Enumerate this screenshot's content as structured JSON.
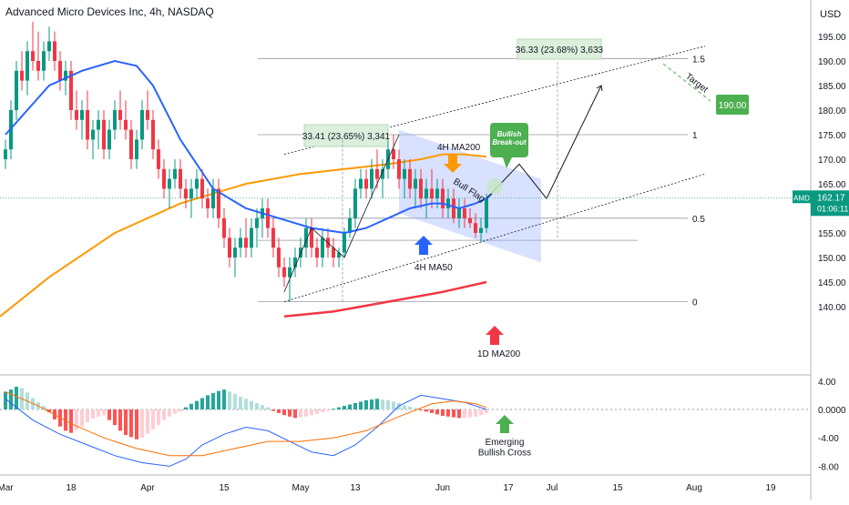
{
  "header": {
    "title": "Advanced Micro Devices Inc, 4h, NASDAQ",
    "currency": "USD"
  },
  "price_axis": {
    "ticks": [
      {
        "value": 195,
        "label": "195.00"
      },
      {
        "value": 190,
        "label": "190.00"
      },
      {
        "value": 185,
        "label": "185.00"
      },
      {
        "value": 180,
        "label": "180.00"
      },
      {
        "value": 175,
        "label": "175.00"
      },
      {
        "value": 170,
        "label": "170.00"
      },
      {
        "value": 165,
        "label": "165.00"
      },
      {
        "value": 160,
        "label": "160.00"
      },
      {
        "value": 155,
        "label": "155.00"
      },
      {
        "value": 150,
        "label": "150.00"
      },
      {
        "value": 145,
        "label": "145.00"
      },
      {
        "value": 140,
        "label": "140.00"
      }
    ],
    "last_price": {
      "symbol": "AMD",
      "price": "162.17",
      "countdown": "01:06:11",
      "value": 162.17,
      "color": "#089981"
    }
  },
  "macd_axis": {
    "ticks": [
      {
        "value": 4,
        "label": "4.00"
      },
      {
        "value": 0,
        "label": "0.0000"
      },
      {
        "value": -4,
        "label": "-4.00"
      },
      {
        "value": -8,
        "label": "-8.00"
      }
    ]
  },
  "time_axis": {
    "ticks": [
      {
        "i": 0,
        "label": "Mar"
      },
      {
        "i": 12,
        "label": "18"
      },
      {
        "i": 26,
        "label": "Apr"
      },
      {
        "i": 40,
        "label": "15"
      },
      {
        "i": 54,
        "label": "May"
      },
      {
        "i": 64,
        "label": "13"
      },
      {
        "i": 80,
        "label": "Jun"
      },
      {
        "i": 92,
        "label": "17"
      },
      {
        "i": 100,
        "label": "Jul"
      },
      {
        "i": 112,
        "label": "15"
      },
      {
        "i": 126,
        "label": "Aug"
      },
      {
        "i": 140,
        "label": "19"
      }
    ]
  },
  "annotations": {
    "target_label": "Target",
    "target_value": "190.00",
    "breakout_label": "Bullish\nBreak-out",
    "bull_flag": "Bull Flag",
    "ma200_4h": "4H MA200",
    "ma50_4h": "4H MA50",
    "ma200_1d": "1D MA200",
    "macd_cross": "Emerging\nBullish Cross",
    "measure_1": "33.41 (23.65%) 3,341",
    "measure_2": "36.33 (23.68%) 3,633",
    "fib_1_5": "1.5",
    "fib_1": "1",
    "fib_0_5": "0.5",
    "fib_0": "0"
  },
  "chart_data": {
    "type": "candlestick",
    "colors": {
      "up": "#089981",
      "down": "#f23645",
      "ma50": "#2962ff",
      "ma200_4h": "#ff9800",
      "ma200_1d": "#f23645",
      "macd": "#2962ff",
      "signal": "#ff6d00"
    },
    "ohlc": [
      [
        170,
        174,
        168,
        172
      ],
      [
        172,
        182,
        170,
        180
      ],
      [
        180,
        190,
        178,
        188
      ],
      [
        188,
        192,
        184,
        186
      ],
      [
        186,
        194,
        183,
        192
      ],
      [
        192,
        198,
        188,
        190
      ],
      [
        190,
        196,
        186,
        188
      ],
      [
        188,
        194,
        186,
        192
      ],
      [
        192,
        197,
        190,
        194
      ],
      [
        194,
        196,
        188,
        190
      ],
      [
        190,
        192,
        184,
        186
      ],
      [
        186,
        190,
        183,
        188
      ],
      [
        188,
        190,
        178,
        180
      ],
      [
        180,
        184,
        176,
        178
      ],
      [
        178,
        182,
        174,
        180
      ],
      [
        180,
        184,
        172,
        174
      ],
      [
        174,
        178,
        170,
        176
      ],
      [
        176,
        180,
        172,
        178
      ],
      [
        178,
        180,
        170,
        172
      ],
      [
        172,
        178,
        170,
        176
      ],
      [
        176,
        182,
        174,
        180
      ],
      [
        180,
        184,
        176,
        178
      ],
      [
        178,
        182,
        174,
        176
      ],
      [
        176,
        178,
        168,
        170
      ],
      [
        170,
        176,
        168,
        174
      ],
      [
        174,
        182,
        172,
        180
      ],
      [
        180,
        184,
        176,
        178
      ],
      [
        178,
        180,
        170,
        172
      ],
      [
        172,
        174,
        166,
        168
      ],
      [
        168,
        170,
        162,
        164
      ],
      [
        164,
        168,
        160,
        166
      ],
      [
        166,
        170,
        164,
        168
      ],
      [
        168,
        170,
        162,
        164
      ],
      [
        164,
        166,
        160,
        162
      ],
      [
        162,
        166,
        158,
        164
      ],
      [
        164,
        168,
        162,
        166
      ],
      [
        166,
        168,
        160,
        162
      ],
      [
        162,
        164,
        158,
        160
      ],
      [
        160,
        166,
        158,
        164
      ],
      [
        164,
        166,
        156,
        158
      ],
      [
        158,
        160,
        152,
        154
      ],
      [
        154,
        156,
        148,
        150
      ],
      [
        150,
        154,
        146,
        152
      ],
      [
        152,
        156,
        150,
        154
      ],
      [
        154,
        158,
        150,
        152
      ],
      [
        152,
        158,
        150,
        156
      ],
      [
        156,
        160,
        152,
        158
      ],
      [
        158,
        162,
        154,
        160
      ],
      [
        160,
        162,
        154,
        156
      ],
      [
        156,
        158,
        150,
        152
      ],
      [
        152,
        154,
        146,
        148
      ],
      [
        148,
        150,
        144,
        146
      ],
      [
        146,
        150,
        141,
        148
      ],
      [
        148,
        152,
        146,
        150
      ],
      [
        150,
        154,
        148,
        152
      ],
      [
        152,
        158,
        150,
        156
      ],
      [
        156,
        158,
        150,
        152
      ],
      [
        152,
        154,
        148,
        150
      ],
      [
        150,
        156,
        148,
        154
      ],
      [
        154,
        156,
        150,
        152
      ],
      [
        152,
        154,
        148,
        150
      ],
      [
        150,
        152,
        148,
        151
      ],
      [
        151,
        156,
        150,
        155
      ],
      [
        155,
        160,
        154,
        158
      ],
      [
        158,
        166,
        156,
        164
      ],
      [
        164,
        168,
        162,
        166
      ],
      [
        166,
        168,
        162,
        164
      ],
      [
        164,
        170,
        162,
        168
      ],
      [
        168,
        172,
        164,
        166
      ],
      [
        166,
        170,
        162,
        168
      ],
      [
        168,
        174,
        166,
        172
      ],
      [
        172,
        175,
        168,
        170
      ],
      [
        170,
        172,
        164,
        166
      ],
      [
        166,
        170,
        162,
        168
      ],
      [
        168,
        170,
        162,
        164
      ],
      [
        164,
        168,
        160,
        166
      ],
      [
        166,
        168,
        160,
        162
      ],
      [
        162,
        166,
        158,
        164
      ],
      [
        164,
        168,
        160,
        162
      ],
      [
        162,
        166,
        160,
        164
      ],
      [
        164,
        166,
        158,
        160
      ],
      [
        160,
        164,
        158,
        162
      ],
      [
        162,
        164,
        157,
        158
      ],
      [
        158,
        162,
        156,
        160
      ],
      [
        160,
        162,
        156,
        158
      ],
      [
        158,
        160,
        156,
        157
      ],
      [
        157,
        159,
        154,
        155
      ],
      [
        155,
        158,
        153,
        156
      ],
      [
        156,
        163,
        155,
        162
      ]
    ],
    "ma50": [
      [
        0,
        175
      ],
      [
        4,
        180
      ],
      [
        8,
        185
      ],
      [
        14,
        188
      ],
      [
        20,
        190
      ],
      [
        24,
        189
      ],
      [
        27,
        185
      ],
      [
        32,
        174
      ],
      [
        38,
        164
      ],
      [
        44,
        160
      ],
      [
        50,
        158
      ],
      [
        56,
        156
      ],
      [
        62,
        155
      ],
      [
        66,
        156
      ],
      [
        70,
        158
      ],
      [
        74,
        160
      ],
      [
        78,
        161
      ],
      [
        80,
        161
      ],
      [
        83,
        160
      ],
      [
        86,
        161
      ],
      [
        88,
        162
      ],
      [
        89,
        163
      ]
    ],
    "ma200_4h": [
      [
        -1,
        138
      ],
      [
        8,
        146
      ],
      [
        20,
        155
      ],
      [
        32,
        161
      ],
      [
        44,
        165
      ],
      [
        54,
        167
      ],
      [
        62,
        168
      ],
      [
        70,
        169
      ],
      [
        76,
        170
      ],
      [
        80,
        171
      ],
      [
        84,
        171
      ],
      [
        88,
        170.5
      ]
    ],
    "ma200_1d": [
      [
        51,
        138
      ],
      [
        60,
        139
      ],
      [
        70,
        141
      ],
      [
        80,
        143
      ],
      [
        88,
        145
      ]
    ],
    "projection": [
      [
        88,
        162
      ],
      [
        94,
        169
      ],
      [
        99,
        162
      ],
      [
        109,
        185
      ]
    ],
    "macd_hist": [
      2.5,
      2.8,
      3.2,
      3.0,
      2.4,
      1.6,
      1.0,
      0.5,
      -0.4,
      -1.4,
      -2.4,
      -3.0,
      -3.3,
      -2.9,
      -2.4,
      -1.8,
      -1.3,
      -1.0,
      -0.8,
      -1.5,
      -2.2,
      -3.0,
      -3.6,
      -3.9,
      -4.2,
      -4.0,
      -3.4,
      -2.8,
      -2.2,
      -1.5,
      -1.0,
      -0.6,
      -0.3,
      0.3,
      0.8,
      1.2,
      1.6,
      2.0,
      2.3,
      2.6,
      2.8,
      2.5,
      2.2,
      1.8,
      1.5,
      1.2,
      0.9,
      0.6,
      0.3,
      -0.2,
      -0.5,
      -0.8,
      -1.0,
      -1.2,
      -1.1,
      -1.0,
      -0.8,
      -0.6,
      -0.4,
      -0.2,
      0.1,
      0.3,
      0.5,
      0.7,
      0.9,
      1.1,
      1.3,
      1.4,
      1.5,
      1.4,
      1.3,
      1.1,
      0.9,
      0.6,
      0.4,
      0.2,
      -0.1,
      -0.3,
      -0.5,
      -0.7,
      -0.9,
      -1.0,
      -1.1,
      -1.2,
      -1.2,
      -1.1,
      -1.0,
      -0.8,
      -0.5
    ],
    "macd_line": [
      [
        0,
        1.5
      ],
      [
        5,
        -1.5
      ],
      [
        10,
        -3.5
      ],
      [
        15,
        -5
      ],
      [
        20,
        -6.5
      ],
      [
        25,
        -7.5
      ],
      [
        30,
        -8.0
      ],
      [
        33,
        -7.0
      ],
      [
        36,
        -5.0
      ],
      [
        40,
        -3.5
      ],
      [
        44,
        -2.5
      ],
      [
        48,
        -3.0
      ],
      [
        52,
        -4.5
      ],
      [
        56,
        -6.0
      ],
      [
        60,
        -6.5
      ],
      [
        64,
        -5.0
      ],
      [
        68,
        -2.5
      ],
      [
        72,
        0.5
      ],
      [
        76,
        2.0
      ],
      [
        80,
        1.5
      ],
      [
        84,
        1.0
      ],
      [
        88,
        0.0
      ]
    ],
    "signal_line": [
      [
        0,
        2.5
      ],
      [
        6,
        0.5
      ],
      [
        12,
        -2.0
      ],
      [
        18,
        -4.0
      ],
      [
        24,
        -5.5
      ],
      [
        30,
        -6.5
      ],
      [
        36,
        -6.5
      ],
      [
        42,
        -5.5
      ],
      [
        48,
        -4.5
      ],
      [
        54,
        -4.5
      ],
      [
        60,
        -4.0
      ],
      [
        66,
        -3.0
      ],
      [
        72,
        -1.0
      ],
      [
        78,
        0.8
      ],
      [
        82,
        1.2
      ],
      [
        86,
        0.8
      ],
      [
        88,
        0.3
      ]
    ]
  }
}
